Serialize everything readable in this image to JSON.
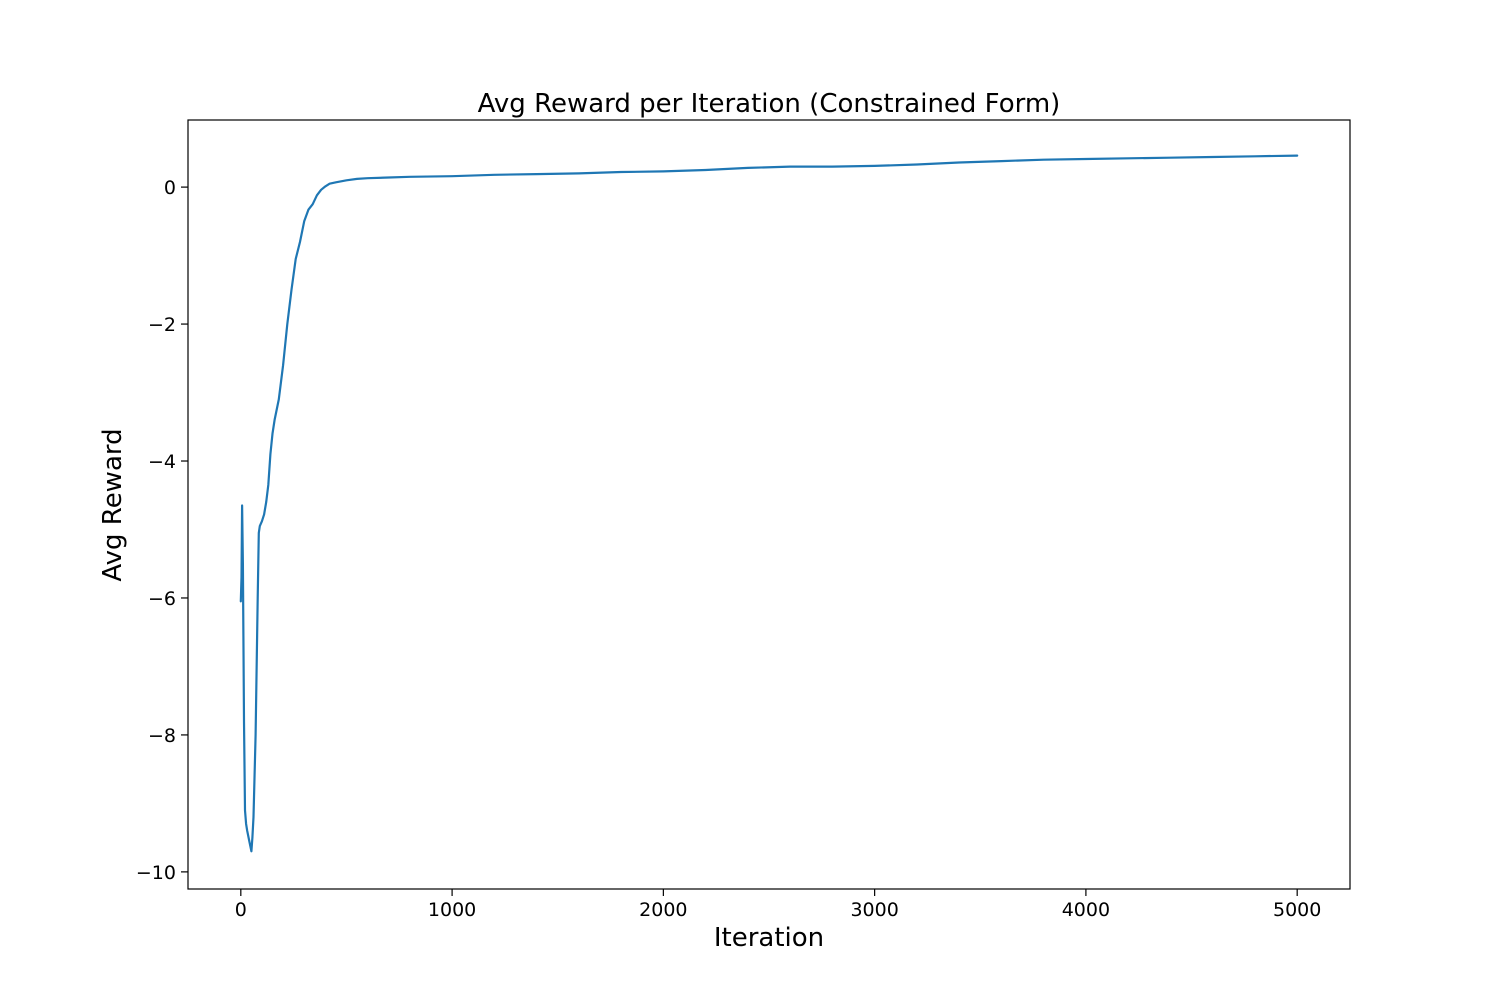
{
  "chart_data": {
    "type": "line",
    "title": "Avg Reward per Iteration (Constrained Form)",
    "xlabel": "Iteration",
    "ylabel": "Avg Reward",
    "xlim": [
      -250,
      5250
    ],
    "ylim": [
      -10.25,
      0.98
    ],
    "grid": false,
    "legend": "none",
    "x_ticks": [
      {
        "value": 0,
        "label": "0"
      },
      {
        "value": 1000,
        "label": "1000"
      },
      {
        "value": 2000,
        "label": "2000"
      },
      {
        "value": 3000,
        "label": "3000"
      },
      {
        "value": 4000,
        "label": "4000"
      },
      {
        "value": 5000,
        "label": "5000"
      }
    ],
    "y_ticks": [
      {
        "value": 0,
        "label": "0"
      },
      {
        "value": -2,
        "label": "−2"
      },
      {
        "value": -4,
        "label": "−4"
      },
      {
        "value": -6,
        "label": "−6"
      },
      {
        "value": -8,
        "label": "−8"
      },
      {
        "value": -10,
        "label": "−10"
      }
    ],
    "series": [
      {
        "color": "#1f77b4",
        "x": [
          0,
          3,
          6,
          10,
          15,
          20,
          25,
          30,
          40,
          50,
          55,
          60,
          70,
          80,
          85,
          90,
          100,
          110,
          120,
          130,
          140,
          150,
          160,
          180,
          200,
          220,
          240,
          260,
          280,
          300,
          320,
          340,
          360,
          380,
          400,
          420,
          450,
          500,
          550,
          600,
          700,
          800,
          1000,
          1200,
          1400,
          1600,
          1800,
          2000,
          2200,
          2400,
          2600,
          2800,
          3000,
          3200,
          3400,
          3600,
          3800,
          4000,
          4200,
          4400,
          4600,
          4800,
          5000
        ],
        "y": [
          -6.05,
          -5.7,
          -4.65,
          -5.5,
          -7.8,
          -9.1,
          -9.3,
          -9.4,
          -9.55,
          -9.7,
          -9.5,
          -9.2,
          -8.0,
          -6.0,
          -5.05,
          -4.95,
          -4.88,
          -4.78,
          -4.6,
          -4.35,
          -3.9,
          -3.6,
          -3.4,
          -3.1,
          -2.6,
          -2.0,
          -1.5,
          -1.05,
          -0.8,
          -0.5,
          -0.33,
          -0.25,
          -0.12,
          -0.04,
          0.01,
          0.05,
          0.07,
          0.1,
          0.12,
          0.13,
          0.14,
          0.15,
          0.16,
          0.18,
          0.19,
          0.2,
          0.22,
          0.23,
          0.25,
          0.28,
          0.3,
          0.3,
          0.31,
          0.33,
          0.36,
          0.38,
          0.4,
          0.41,
          0.42,
          0.43,
          0.44,
          0.45,
          0.46
        ]
      }
    ]
  }
}
